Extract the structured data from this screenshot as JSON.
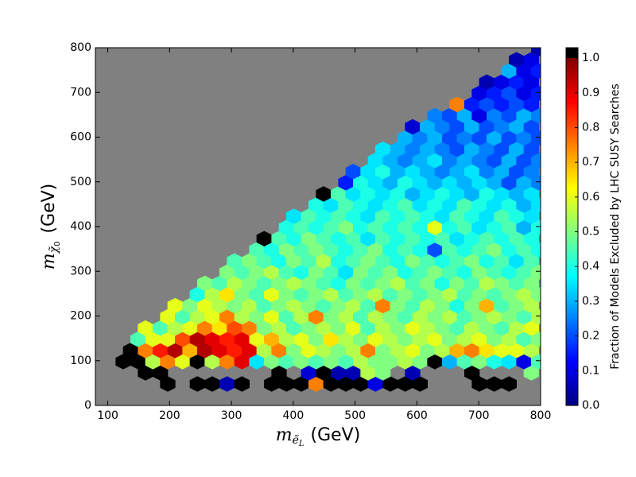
{
  "chart_data": {
    "type": "hexbin",
    "xlabel": [
      "m",
      "ẽ",
      "L",
      "(GeV)"
    ],
    "ylabel": [
      "m",
      "χ̃",
      "0",
      "(GeV)"
    ],
    "colorbar_label": "Fraction of Models Excluded by LHC SUSY Searches",
    "xlim": [
      80,
      800
    ],
    "xticks": [
      100,
      200,
      300,
      400,
      500,
      600,
      700,
      800
    ],
    "ylim": [
      0,
      800
    ],
    "yticks": [
      0,
      100,
      200,
      300,
      400,
      500,
      600,
      700,
      800
    ],
    "background": "#808080",
    "colormap": "jet",
    "over_color": "#000000",
    "clim": [
      0,
      1.03
    ],
    "cticks": [
      {
        "value": 0,
        "label": "0.0"
      },
      {
        "value": 0.1,
        "label": "0.1"
      },
      {
        "value": 0.2,
        "label": "0.2"
      },
      {
        "value": 0.3,
        "label": "0.3"
      },
      {
        "value": 0.4,
        "label": "0.4"
      },
      {
        "value": 0.5,
        "label": "0.5"
      },
      {
        "value": 0.6,
        "label": "0.6"
      },
      {
        "value": 0.7,
        "label": "0.7"
      },
      {
        "value": 0.8,
        "label": "0.8"
      },
      {
        "value": 0.9,
        "label": "0.9"
      },
      {
        "value": 1.0,
        "label": "1.0"
      }
    ],
    "rows": [
      {
        "y": 48,
        "x": [
          197,
          245,
          269,
          293,
          317,
          365,
          389,
          413,
          437,
          461,
          485,
          509,
          533,
          557,
          581,
          605,
          701,
          725,
          749
        ],
        "values": [
          1,
          1,
          1,
          0.05,
          1,
          1,
          1,
          1,
          0.75,
          1,
          1,
          1,
          0.1,
          1,
          1,
          1,
          1,
          1,
          1
        ]
      },
      {
        "y": 73,
        "x": [
          161,
          185,
          377,
          425,
          449,
          473,
          497,
          521,
          545,
          593,
          689,
          785
        ],
        "values": [
          1,
          1,
          1,
          0.08,
          1,
          0.05,
          0.05,
          0.55,
          0.5,
          0.05,
          1,
          0.5
        ]
      },
      {
        "y": 98,
        "x": [
          125,
          149,
          173,
          197,
          221,
          245,
          269,
          293,
          317,
          341,
          365,
          389,
          413,
          437,
          461,
          485,
          509,
          533,
          557,
          581,
          605,
          629,
          653,
          677,
          701,
          725,
          749,
          773,
          797
        ],
        "values": [
          1,
          1,
          0.55,
          0.75,
          0.6,
          1,
          0.55,
          0.75,
          0.9,
          0.35,
          0.5,
          0.45,
          0.5,
          0.45,
          0.5,
          0.45,
          0.55,
          0.5,
          0.5,
          0.55,
          0.5,
          1,
          0.3,
          0.45,
          0.5,
          0.4,
          0.35,
          0.1,
          0.45
        ]
      },
      {
        "y": 123,
        "x": [
          137,
          161,
          185,
          209,
          233,
          257,
          281,
          305,
          329,
          353,
          377,
          401,
          425,
          449,
          473,
          497,
          521,
          545,
          569,
          593,
          617,
          641,
          665,
          689,
          713,
          737,
          761,
          785
        ],
        "values": [
          1,
          0.75,
          0.85,
          0.95,
          0.7,
          0.95,
          0.9,
          0.85,
          0.9,
          0.55,
          0.75,
          0.5,
          0.6,
          0.55,
          0.5,
          0.55,
          0.75,
          0.5,
          0.55,
          0.6,
          0.5,
          0.55,
          0.7,
          0.75,
          0.65,
          0.6,
          0.6,
          0.55
        ]
      },
      {
        "y": 148,
        "x": [
          149,
          173,
          197,
          221,
          245,
          269,
          293,
          317,
          341,
          365,
          389,
          413,
          437,
          461,
          485,
          509,
          533,
          557,
          581,
          605,
          629,
          653,
          677,
          701,
          725,
          749,
          773,
          797
        ],
        "values": [
          0.45,
          0.6,
          0.6,
          0.8,
          0.95,
          0.9,
          0.85,
          0.9,
          0.6,
          0.7,
          0.55,
          0.6,
          0.5,
          0.65,
          0.55,
          0.5,
          0.6,
          0.55,
          0.5,
          0.55,
          0.6,
          0.5,
          0.55,
          0.6,
          0.5,
          0.55,
          0.45,
          0.5
        ]
      },
      {
        "y": 173,
        "x": [
          161,
          185,
          209,
          233,
          257,
          281,
          305,
          329,
          353,
          377,
          401,
          425,
          449,
          473,
          497,
          521,
          545,
          569,
          593,
          617,
          641,
          665,
          689,
          713,
          737,
          761,
          785
        ],
        "values": [
          0.6,
          0.45,
          0.55,
          0.6,
          0.75,
          0.65,
          0.8,
          0.75,
          0.5,
          0.55,
          0.45,
          0.5,
          0.55,
          0.5,
          0.6,
          0.45,
          0.55,
          0.5,
          0.6,
          0.55,
          0.5,
          0.45,
          0.55,
          0.5,
          0.45,
          0.55,
          0.6
        ]
      },
      {
        "y": 198,
        "x": [
          197,
          221,
          245,
          269,
          293,
          317,
          341,
          365,
          389,
          413,
          437,
          461,
          485,
          509,
          533,
          557,
          581,
          605,
          629,
          653,
          677,
          701,
          725,
          749,
          773,
          797
        ],
        "values": [
          0.6,
          0.45,
          0.55,
          0.6,
          0.75,
          0.55,
          0.5,
          0.6,
          0.45,
          0.55,
          0.75,
          0.5,
          0.55,
          0.45,
          0.55,
          0.5,
          0.45,
          0.55,
          0.5,
          0.55,
          0.45,
          0.5,
          0.55,
          0.5,
          0.45,
          0.55
        ]
      },
      {
        "y": 223,
        "x": [
          209,
          233,
          257,
          281,
          305,
          329,
          353,
          377,
          401,
          425,
          449,
          473,
          497,
          521,
          545,
          569,
          593,
          617,
          641,
          665,
          689,
          713,
          737,
          761,
          785
        ],
        "values": [
          0.6,
          0.5,
          0.6,
          0.55,
          0.5,
          0.55,
          0.45,
          0.5,
          0.55,
          0.5,
          0.45,
          0.5,
          0.55,
          0.45,
          0.75,
          0.5,
          0.45,
          0.55,
          0.5,
          0.4,
          0.5,
          0.7,
          0.45,
          0.5,
          0.55
        ]
      },
      {
        "y": 248,
        "x": [
          245,
          269,
          293,
          317,
          341,
          365,
          389,
          413,
          437,
          461,
          485,
          509,
          533,
          557,
          581,
          605,
          629,
          653,
          677,
          701,
          725,
          749,
          773,
          797
        ],
        "values": [
          0.4,
          0.55,
          0.65,
          0.5,
          0.45,
          0.6,
          0.5,
          0.45,
          0.5,
          0.55,
          0.45,
          0.5,
          0.55,
          0.45,
          0.5,
          0.45,
          0.5,
          0.55,
          0.45,
          0.5,
          0.45,
          0.5,
          0.55,
          0.5
        ]
      },
      {
        "y": 273,
        "x": [
          257,
          281,
          305,
          329,
          353,
          377,
          401,
          425,
          449,
          473,
          497,
          521,
          545,
          569,
          593,
          617,
          641,
          665,
          689,
          713,
          737,
          761,
          785
        ],
        "values": [
          0.5,
          0.45,
          0.55,
          0.5,
          0.45,
          0.5,
          0.55,
          0.5,
          0.45,
          0.4,
          0.5,
          0.45,
          0.5,
          0.55,
          0.45,
          0.5,
          0.4,
          0.5,
          0.45,
          0.55,
          0.5,
          0.45,
          0.5
        ]
      },
      {
        "y": 298,
        "x": [
          293,
          317,
          341,
          365,
          389,
          413,
          437,
          461,
          485,
          509,
          533,
          557,
          581,
          605,
          629,
          653,
          677,
          701,
          725,
          749,
          773,
          797
        ],
        "values": [
          0.5,
          0.45,
          0.5,
          0.55,
          0.45,
          0.4,
          0.5,
          0.45,
          0.35,
          0.5,
          0.45,
          0.5,
          0.4,
          0.45,
          0.5,
          0.45,
          0.4,
          0.5,
          0.45,
          0.4,
          0.45,
          0.5
        ]
      },
      {
        "y": 323,
        "x": [
          305,
          329,
          353,
          377,
          401,
          425,
          449,
          473,
          497,
          521,
          545,
          569,
          593,
          617,
          641,
          665,
          689,
          713,
          737,
          761,
          785
        ],
        "values": [
          0.45,
          0.5,
          0.45,
          0.4,
          0.5,
          0.45,
          0.55,
          0.4,
          0.45,
          0.5,
          0.45,
          0.4,
          0.5,
          0.45,
          0.4,
          0.45,
          0.5,
          0.4,
          0.45,
          0.35,
          0.45
        ]
      },
      {
        "y": 348,
        "x": [
          341,
          365,
          389,
          413,
          437,
          461,
          485,
          509,
          533,
          557,
          581,
          605,
          629,
          653,
          677,
          701,
          725,
          749,
          773,
          797
        ],
        "values": [
          0.45,
          0.4,
          0.5,
          0.45,
          0.5,
          0.45,
          0.4,
          0.45,
          0.5,
          0.4,
          0.45,
          0.4,
          0.2,
          0.45,
          0.4,
          0.45,
          0.5,
          0.4,
          0.45,
          0.4
        ]
      },
      {
        "y": 373,
        "x": [
          353,
          377,
          401,
          425,
          449,
          473,
          497,
          521,
          545,
          569,
          593,
          617,
          641,
          665,
          689,
          713,
          737,
          761,
          785
        ],
        "values": [
          1,
          0.45,
          0.4,
          0.5,
          0.45,
          0.4,
          0.45,
          0.35,
          0.45,
          0.4,
          0.45,
          0.4,
          0.45,
          0.35,
          0.4,
          0.45,
          0.4,
          0.45,
          0.4
        ]
      },
      {
        "y": 398,
        "x": [
          389,
          413,
          437,
          461,
          485,
          509,
          533,
          557,
          581,
          605,
          629,
          653,
          677,
          701,
          725,
          749,
          773,
          797
        ],
        "values": [
          0.4,
          0.45,
          0.4,
          0.45,
          0.5,
          0.4,
          0.45,
          0.4,
          0.45,
          0.4,
          0.6,
          0.4,
          0.45,
          0.35,
          0.4,
          0.45,
          0.3,
          0.4
        ]
      },
      {
        "y": 423,
        "x": [
          401,
          425,
          449,
          473,
          497,
          521,
          545,
          569,
          593,
          617,
          641,
          665,
          689,
          713,
          737,
          761,
          785
        ],
        "values": [
          0.35,
          0.45,
          0.4,
          0.45,
          0.4,
          0.35,
          0.45,
          0.4,
          0.45,
          0.4,
          0.35,
          0.45,
          0.4,
          0.35,
          0.45,
          0.4,
          0.35
        ]
      },
      {
        "y": 448,
        "x": [
          437,
          461,
          485,
          509,
          533,
          557,
          581,
          605,
          629,
          653,
          677,
          701,
          725,
          749,
          773,
          797
        ],
        "values": [
          0.4,
          0.35,
          0.45,
          0.4,
          0.35,
          0.4,
          0.45,
          0.35,
          0.4,
          0.35,
          0.45,
          0.4,
          0.35,
          0.4,
          0.3,
          0.35
        ]
      },
      {
        "y": 473,
        "x": [
          449,
          473,
          497,
          521,
          545,
          569,
          593,
          617,
          641,
          665,
          689,
          713,
          737,
          761,
          785
        ],
        "values": [
          1,
          0.45,
          0.35,
          0.4,
          0.35,
          0.4,
          0.3,
          0.35,
          0.4,
          0.35,
          0.3,
          0.4,
          0.35,
          0.3,
          0.35
        ]
      },
      {
        "y": 498,
        "x": [
          485,
          509,
          533,
          557,
          581,
          605,
          629,
          653,
          677,
          701,
          725,
          749,
          773,
          797
        ],
        "values": [
          0.15,
          0.4,
          0.35,
          0.3,
          0.4,
          0.35,
          0.3,
          0.35,
          0.3,
          0.35,
          0.3,
          0.2,
          0.3,
          0.25
        ]
      },
      {
        "y": 523,
        "x": [
          497,
          521,
          545,
          569,
          593,
          617,
          641,
          665,
          689,
          713,
          737,
          761,
          785
        ],
        "values": [
          0.2,
          0.35,
          0.4,
          0.3,
          0.35,
          0.3,
          0.25,
          0.3,
          0.35,
          0.25,
          0.3,
          0.2,
          0.25
        ]
      },
      {
        "y": 548,
        "x": [
          533,
          557,
          581,
          605,
          629,
          653,
          677,
          701,
          725,
          749,
          773,
          797
        ],
        "values": [
          0.35,
          0.3,
          0.25,
          0.3,
          0.35,
          0.25,
          0.3,
          0.25,
          0.2,
          0.3,
          0.2,
          0.25
        ]
      },
      {
        "y": 573,
        "x": [
          545,
          569,
          593,
          617,
          641,
          665,
          689,
          713,
          737,
          761,
          785
        ],
        "values": [
          0.35,
          0.3,
          0.25,
          0.3,
          0.25,
          0.2,
          0.3,
          0.25,
          0.2,
          0.3,
          0.2
        ]
      },
      {
        "y": 598,
        "x": [
          581,
          605,
          629,
          653,
          677,
          701,
          725,
          749,
          773,
          797
        ],
        "values": [
          0.3,
          0.25,
          0.3,
          0.2,
          0.25,
          0.2,
          0.3,
          0.2,
          0.25,
          0.2
        ]
      },
      {
        "y": 623,
        "x": [
          593,
          617,
          641,
          665,
          689,
          713,
          737,
          761,
          785
        ],
        "values": [
          0.08,
          0.3,
          0.25,
          0.2,
          0.3,
          0.2,
          0.25,
          0.3,
          0.2
        ]
      },
      {
        "y": 648,
        "x": [
          629,
          653,
          677,
          701,
          725,
          749,
          773,
          797
        ],
        "values": [
          0.25,
          0.2,
          0.3,
          0.1,
          0.25,
          0.2,
          0.3,
          0.25
        ]
      },
      {
        "y": 673,
        "x": [
          665,
          689,
          713,
          737,
          761,
          785
        ],
        "values": [
          0.75,
          0.15,
          0.2,
          0.15,
          0.2,
          0.15
        ]
      },
      {
        "y": 698,
        "x": [
          701,
          725,
          749,
          773,
          797
        ],
        "values": [
          0.1,
          0.15,
          0.2,
          0.1,
          0.15
        ]
      },
      {
        "y": 723,
        "x": [
          713,
          737,
          761,
          785
        ],
        "values": [
          0.05,
          0.1,
          0.15,
          0.1
        ]
      },
      {
        "y": 748,
        "x": [
          749,
          773,
          797
        ],
        "values": [
          0.3,
          0.1,
          0.15
        ]
      },
      {
        "y": 773,
        "x": [
          761,
          785
        ],
        "values": [
          0.05,
          0.1
        ]
      },
      {
        "y": 798,
        "x": [
          797
        ],
        "values": [
          0.05
        ]
      }
    ]
  }
}
